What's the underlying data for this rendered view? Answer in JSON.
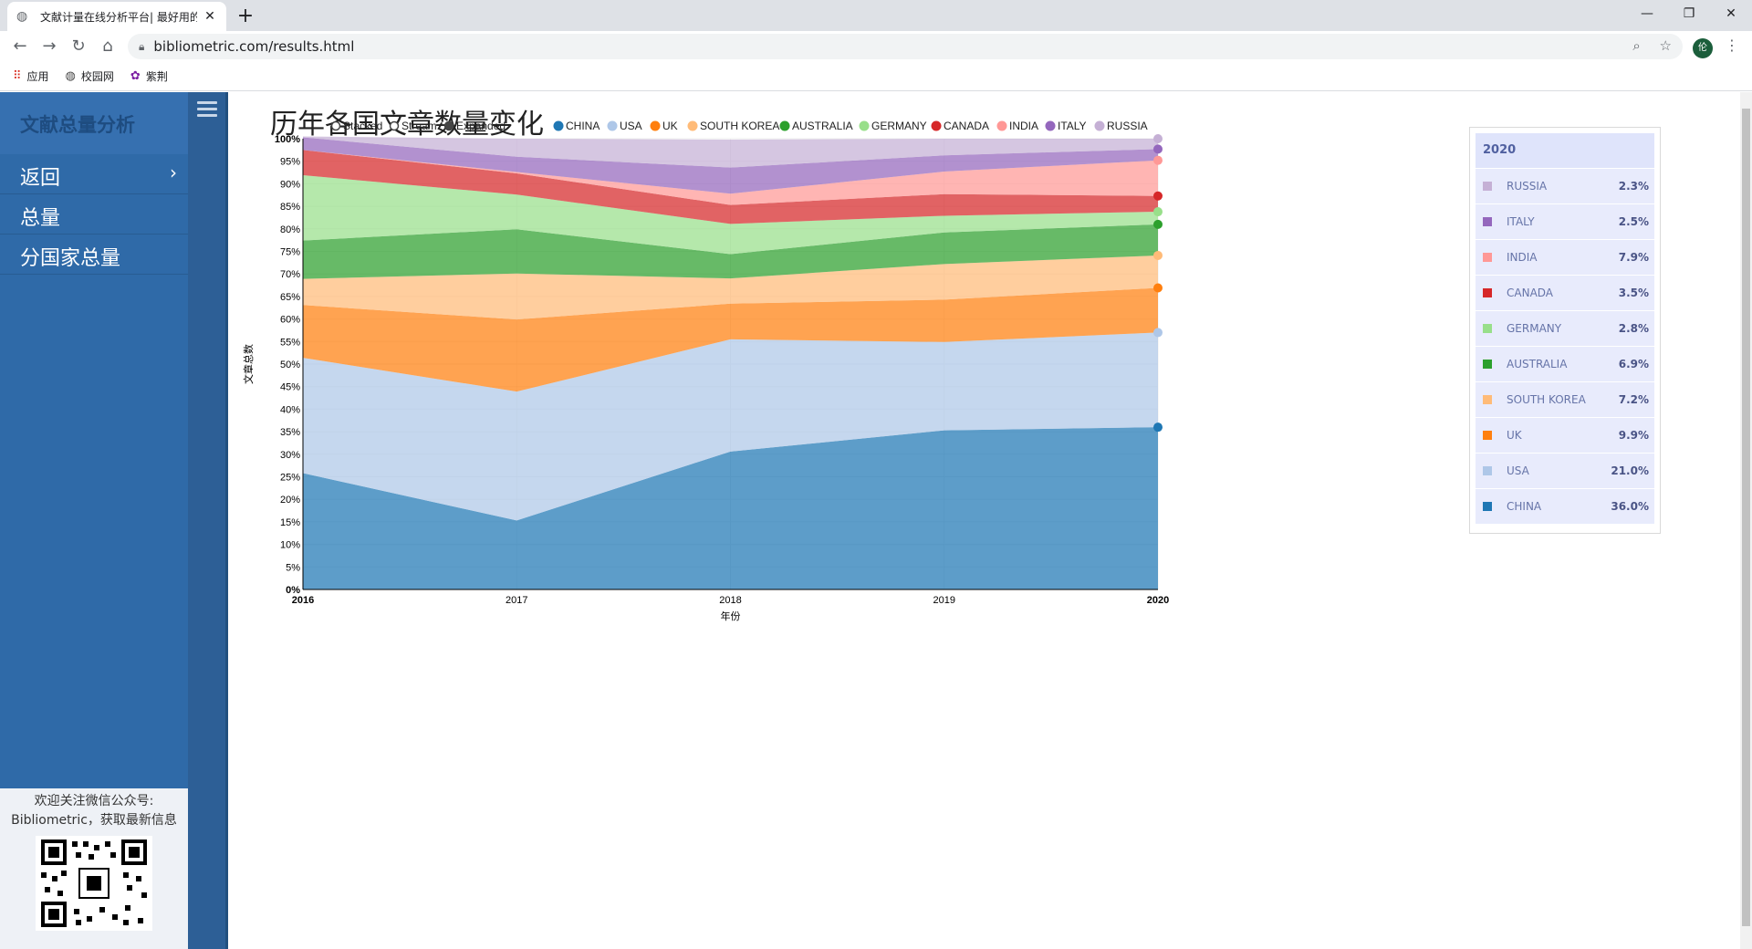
{
  "browser": {
    "tab_title": "文献计量在线分析平台| 最好用的",
    "url": "bibliometric.com/results.html",
    "bookmarks": [
      {
        "label": "应用",
        "icon": "apps-grid-icon"
      },
      {
        "label": "校园网",
        "icon": "globe-icon"
      },
      {
        "label": "紫荆",
        "icon": "bauhinia-icon"
      }
    ],
    "profile_initial": "伦"
  },
  "sidebar": {
    "title": "文献总量分析",
    "items": [
      {
        "label": "返回",
        "has_chevron": true
      },
      {
        "label": "总量"
      },
      {
        "label": "分国家总量"
      }
    ],
    "footer_line1": "欢迎关注微信公众号:",
    "footer_line2": "Bibliometric，获取最新信息"
  },
  "page_title": "历年各国文章数量变化",
  "chart_controls": {
    "modes": [
      {
        "label": "Stacked",
        "selected": false
      },
      {
        "label": "Stream",
        "selected": false
      },
      {
        "label": "Expanded",
        "selected": true
      }
    ]
  },
  "chart_data": {
    "type": "area",
    "mode": "expanded",
    "xlabel": "年份",
    "ylabel": "文章总数",
    "x": [
      2016,
      2017,
      2018,
      2019,
      2020
    ],
    "ylim": [
      0,
      100
    ],
    "yticks": [
      "0%",
      "5%",
      "10%",
      "15%",
      "20%",
      "25%",
      "30%",
      "35%",
      "40%",
      "45%",
      "50%",
      "55%",
      "60%",
      "65%",
      "70%",
      "75%",
      "80%",
      "85%",
      "90%",
      "95%",
      "100%"
    ],
    "series": [
      {
        "name": "CHINA",
        "color": "#1f77b4",
        "values": [
          25.8,
          15.3,
          30.6,
          35.3,
          36.0
        ]
      },
      {
        "name": "USA",
        "color": "#aec7e8",
        "values": [
          25.6,
          28.6,
          24.9,
          19.6,
          21.0
        ]
      },
      {
        "name": "UK",
        "color": "#ff7f0e",
        "values": [
          11.7,
          16.0,
          7.9,
          9.4,
          9.9
        ]
      },
      {
        "name": "SOUTH KOREA",
        "color": "#ffbb78",
        "values": [
          5.8,
          10.2,
          5.6,
          7.9,
          7.2
        ]
      },
      {
        "name": "AUSTRALIA",
        "color": "#2ca02c",
        "values": [
          8.5,
          9.8,
          5.4,
          7.0,
          6.9
        ]
      },
      {
        "name": "GERMANY",
        "color": "#98df8a",
        "values": [
          14.5,
          7.7,
          6.7,
          3.7,
          2.8
        ]
      },
      {
        "name": "CANADA",
        "color": "#d62728",
        "values": [
          5.6,
          4.7,
          4.2,
          4.8,
          3.5
        ]
      },
      {
        "name": "INDIA",
        "color": "#ff9896",
        "values": [
          0.0,
          0.3,
          2.5,
          5.0,
          7.9
        ]
      },
      {
        "name": "ITALY",
        "color": "#9467bd",
        "values": [
          2.8,
          3.4,
          5.8,
          3.6,
          2.5
        ]
      },
      {
        "name": "RUSSIA",
        "color": "#c5b0d5",
        "values": [
          0.2,
          4.0,
          6.2,
          3.7,
          2.3
        ]
      }
    ]
  },
  "legend_panel": {
    "year": "2020",
    "rows": [
      {
        "name": "RUSSIA",
        "value": "2.3%",
        "color": "#c5b0d5"
      },
      {
        "name": "ITALY",
        "value": "2.5%",
        "color": "#9467bd"
      },
      {
        "name": "INDIA",
        "value": "7.9%",
        "color": "#ff9896"
      },
      {
        "name": "CANADA",
        "value": "3.5%",
        "color": "#d62728"
      },
      {
        "name": "GERMANY",
        "value": "2.8%",
        "color": "#98df8a"
      },
      {
        "name": "AUSTRALIA",
        "value": "6.9%",
        "color": "#2ca02c"
      },
      {
        "name": "SOUTH KOREA",
        "value": "7.2%",
        "color": "#ffbb78"
      },
      {
        "name": "UK",
        "value": "9.9%",
        "color": "#ff7f0e"
      },
      {
        "name": "USA",
        "value": "21.0%",
        "color": "#aec7e8"
      },
      {
        "name": "CHINA",
        "value": "36.0%",
        "color": "#1f77b4"
      }
    ]
  }
}
